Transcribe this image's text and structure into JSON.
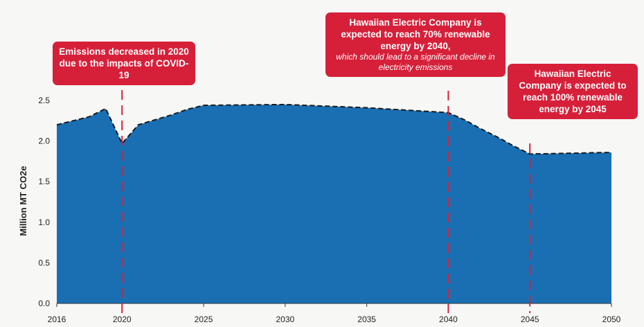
{
  "chart_data": {
    "type": "area",
    "title": "",
    "xlabel": "",
    "ylabel": "Million MT CO2e",
    "xlim": [
      2016,
      2050
    ],
    "ylim": [
      0,
      2.5
    ],
    "x_ticks": [
      "2016",
      "2020",
      "2025",
      "2030",
      "2035",
      "2040",
      "2045",
      "2050"
    ],
    "y_ticks": [
      "0.0",
      "0.5",
      "1.0",
      "1.5",
      "2.0",
      "2.5"
    ],
    "grid": false,
    "colors": {
      "area": "#1a6fb3",
      "projection_line": "#1a1a1a",
      "markers": "#d6203a",
      "callouts": "#d6203a"
    },
    "x": [
      2016,
      2017,
      2018,
      2019,
      2020,
      2021,
      2022,
      2023,
      2024,
      2025,
      2030,
      2035,
      2040,
      2041,
      2042,
      2043,
      2044,
      2045,
      2050
    ],
    "values": [
      2.2,
      2.25,
      2.3,
      2.4,
      1.97,
      2.2,
      2.26,
      2.32,
      2.39,
      2.44,
      2.45,
      2.41,
      2.35,
      2.26,
      2.15,
      2.05,
      1.94,
      1.84,
      1.86
    ],
    "reference_years": [
      2020,
      2040,
      2045
    ],
    "annotations": [
      {
        "year": 2020,
        "text": "Emissions decreased in 2020 due to the impacts of COVID-19",
        "subtext": ""
      },
      {
        "year": 2040,
        "text": "Hawaiian Electric Company is expected to reach 70% renewable energy by 2040,",
        "subtext": "which should lead to a significant decline in electricity emissions"
      },
      {
        "year": 2045,
        "text": "Hawaiian Electric Company is expected to reach 100% renewable energy by 2045",
        "subtext": ""
      }
    ]
  }
}
